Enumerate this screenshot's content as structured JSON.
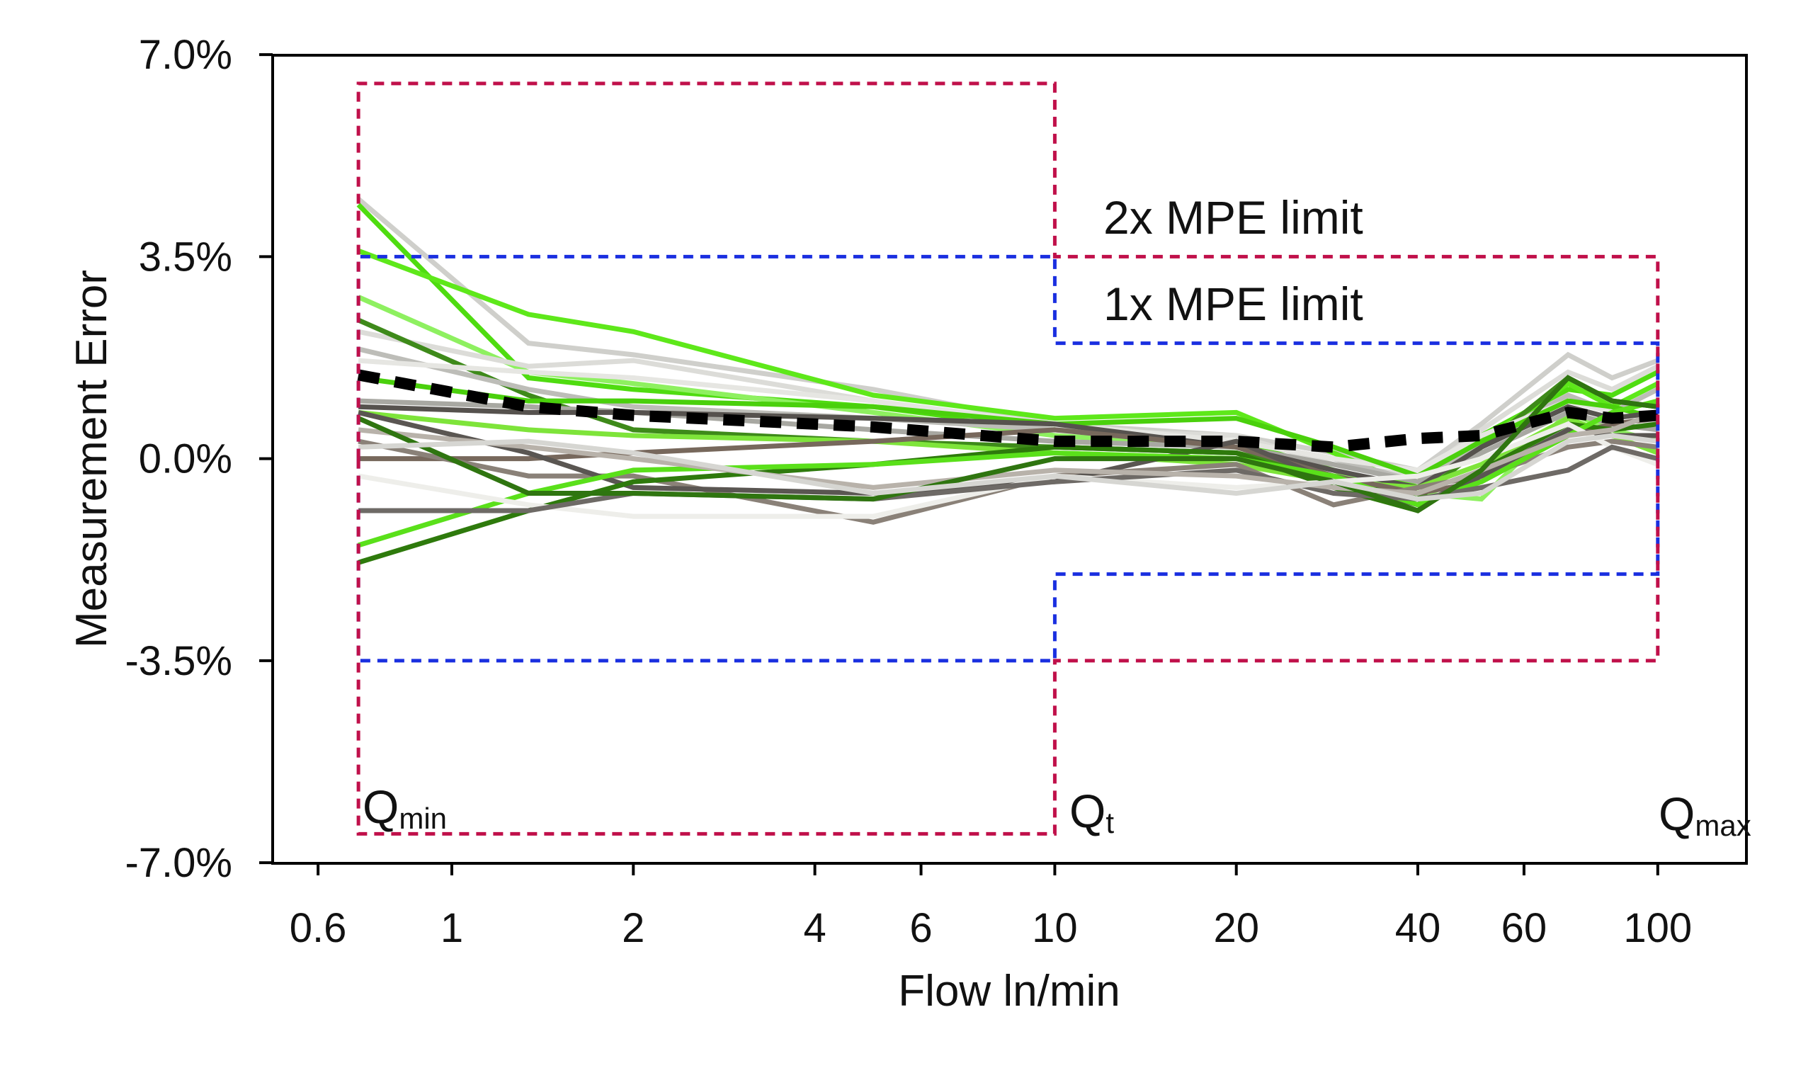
{
  "chart_data": {
    "type": "line",
    "xlabel": "Flow ln/min",
    "ylabel": "Measurement Error",
    "xscale": "log",
    "xlim": [
      0.5,
      140
    ],
    "ylim": [
      -7,
      7
    ],
    "xticks": [
      0.6,
      1,
      2,
      4,
      6,
      10,
      20,
      40,
      60,
      100
    ],
    "xtick_labels": [
      "0.6",
      "1",
      "2",
      "4",
      "6",
      "10",
      "20",
      "40",
      "60",
      "100"
    ],
    "yticks": [
      7,
      3.5,
      0,
      -3.5,
      -7
    ],
    "ytick_labels": [
      "7.0%",
      "3.5%",
      "0.0%",
      "-3.5%",
      "-7.0%"
    ],
    "x": [
      0.7,
      1.34,
      2,
      5,
      10,
      20,
      29,
      40,
      51,
      71,
      84,
      100
    ],
    "series": [
      {
        "color": "#cfcfcb",
        "values": [
          4.5,
          2.0,
          1.8,
          1.2,
          0.6,
          0.4,
          0.1,
          -0.2,
          0.6,
          1.8,
          1.4,
          1.7
        ]
      },
      {
        "color": "#4fdc10",
        "values": [
          4.4,
          1.4,
          1.2,
          0.9,
          0.5,
          0.3,
          -0.2,
          -0.7,
          0.4,
          1.2,
          1.1,
          1.5
        ]
      },
      {
        "color": "#5ee81a",
        "values": [
          3.6,
          2.5,
          2.2,
          1.1,
          0.7,
          0.8,
          0.1,
          -0.5,
          0.3,
          1.3,
          0.9,
          1.3
        ]
      },
      {
        "color": "#8ef060",
        "values": [
          2.8,
          1.5,
          1.3,
          0.8,
          0.4,
          0.2,
          -0.2,
          -0.6,
          -0.7,
          0.8,
          0.5,
          0.3
        ]
      },
      {
        "color": "#dcdcd8",
        "values": [
          2.2,
          1.6,
          1.7,
          1.0,
          0.5,
          0.4,
          -0.1,
          -0.3,
          0.5,
          1.5,
          1.2,
          1.6
        ]
      },
      {
        "color": "#3e8a1a",
        "values": [
          2.4,
          1.1,
          0.5,
          0.3,
          0.2,
          0.1,
          -0.3,
          -0.7,
          0.2,
          1.4,
          1.0,
          0.9
        ]
      },
      {
        "color": "#bdbdb8",
        "values": [
          1.9,
          1.2,
          0.9,
          0.7,
          0.5,
          0.3,
          0.0,
          -0.4,
          0.3,
          1.1,
          0.8,
          1.2
        ]
      },
      {
        "color": "#e6e6e2",
        "values": [
          1.7,
          1.5,
          1.4,
          1.0,
          0.6,
          0.3,
          0.0,
          -0.2,
          0.4,
          1.0,
          0.8,
          0.6
        ]
      },
      {
        "color": "#4ad00c",
        "values": [
          1.4,
          1.0,
          1.0,
          0.9,
          0.6,
          0.7,
          0.2,
          -0.3,
          0.3,
          1.0,
          0.9,
          0.7
        ]
      },
      {
        "color": "#a8a8a2",
        "values": [
          1.0,
          0.9,
          0.8,
          0.5,
          0.3,
          0.2,
          -0.1,
          -0.4,
          0.1,
          0.8,
          0.6,
          0.5
        ]
      },
      {
        "color": "#56524e",
        "values": [
          0.9,
          0.8,
          0.8,
          0.7,
          0.6,
          0.2,
          -0.2,
          -0.5,
          0.2,
          0.9,
          0.7,
          0.8
        ]
      },
      {
        "color": "#7ee43a",
        "values": [
          0.8,
          0.5,
          0.4,
          0.3,
          0.1,
          -0.1,
          -0.4,
          -0.5,
          -0.1,
          0.7,
          0.4,
          0.1
        ]
      },
      {
        "color": "#77685c",
        "values": [
          0.0,
          0.0,
          0.1,
          0.3,
          0.5,
          0.2,
          -0.3,
          -0.6,
          -0.4,
          0.4,
          0.6,
          0.7
        ]
      },
      {
        "color": "#8a8178",
        "values": [
          0.3,
          -0.3,
          -0.3,
          -1.1,
          -0.3,
          -0.1,
          -0.8,
          -0.5,
          -0.3,
          0.2,
          0.3,
          0.2
        ]
      },
      {
        "color": "#5a5652",
        "values": [
          0.8,
          0.1,
          -0.5,
          -0.6,
          -0.4,
          0.3,
          -0.4,
          -0.8,
          -0.3,
          0.5,
          0.4,
          0.4
        ]
      },
      {
        "color": "#2e7a0c",
        "values": [
          -1.8,
          -0.9,
          -0.4,
          -0.1,
          0.2,
          0.1,
          -0.5,
          -0.9,
          -0.2,
          0.6,
          0.5,
          0.6
        ]
      },
      {
        "color": "#5ae01a",
        "values": [
          -1.5,
          -0.6,
          -0.2,
          -0.1,
          0.1,
          0.0,
          -0.3,
          -0.8,
          -0.4,
          0.4,
          0.8,
          1.0
        ]
      },
      {
        "color": "#eeeeea",
        "values": [
          -0.3,
          -0.8,
          -1.0,
          -1.0,
          -0.3,
          -0.5,
          -0.4,
          -0.3,
          0.0,
          0.6,
          0.2,
          -0.1
        ]
      },
      {
        "color": "#6e6a66",
        "values": [
          -0.9,
          -0.9,
          -0.6,
          -0.7,
          -0.4,
          -0.2,
          -0.6,
          -0.7,
          -0.5,
          -0.2,
          0.2,
          0.0
        ]
      },
      {
        "color": "#b8b2aa",
        "values": [
          0.5,
          0.2,
          0.0,
          -0.5,
          -0.2,
          -0.3,
          -0.5,
          -0.6,
          -0.2,
          0.4,
          0.5,
          0.8
        ]
      },
      {
        "color": "#2f7510",
        "values": [
          0.7,
          -0.6,
          -0.6,
          -0.7,
          0.0,
          0.0,
          -0.4,
          -0.9,
          -0.2,
          1.4,
          1.0,
          0.9
        ]
      },
      {
        "color": "#d6d6d2",
        "values": [
          0.2,
          0.3,
          0.1,
          -0.6,
          -0.3,
          -0.6,
          -0.4,
          -0.7,
          -0.6,
          0.3,
          0.4,
          0.3
        ]
      }
    ],
    "mean": {
      "color": "#000000",
      "values": [
        1.45,
        0.9,
        0.75,
        0.55,
        0.3,
        0.3,
        0.2,
        0.35,
        0.4,
        0.8,
        0.7,
        0.75
      ]
    },
    "limits": {
      "mpe2x": {
        "color": "#c0104a",
        "segments": [
          {
            "x": [
              0.7,
              10
            ],
            "y": 6.5
          },
          {
            "x": [
              10,
              100
            ],
            "y": 3.5
          }
        ]
      },
      "mpe1x": {
        "color": "#1a2fe0",
        "segments": [
          {
            "x": [
              0.7,
              10
            ],
            "y": 3.5
          },
          {
            "x": [
              10,
              100
            ],
            "y": 2.0
          }
        ]
      }
    },
    "annotations": {
      "mpe2x_label": "2x MPE limit",
      "mpe1x_label": "1x MPE limit",
      "qmin": {
        "main": "Q",
        "sub": "min"
      },
      "qt": {
        "main": "Q",
        "sub": "t"
      },
      "qmax": {
        "main": "Q",
        "sub": "max"
      }
    }
  }
}
